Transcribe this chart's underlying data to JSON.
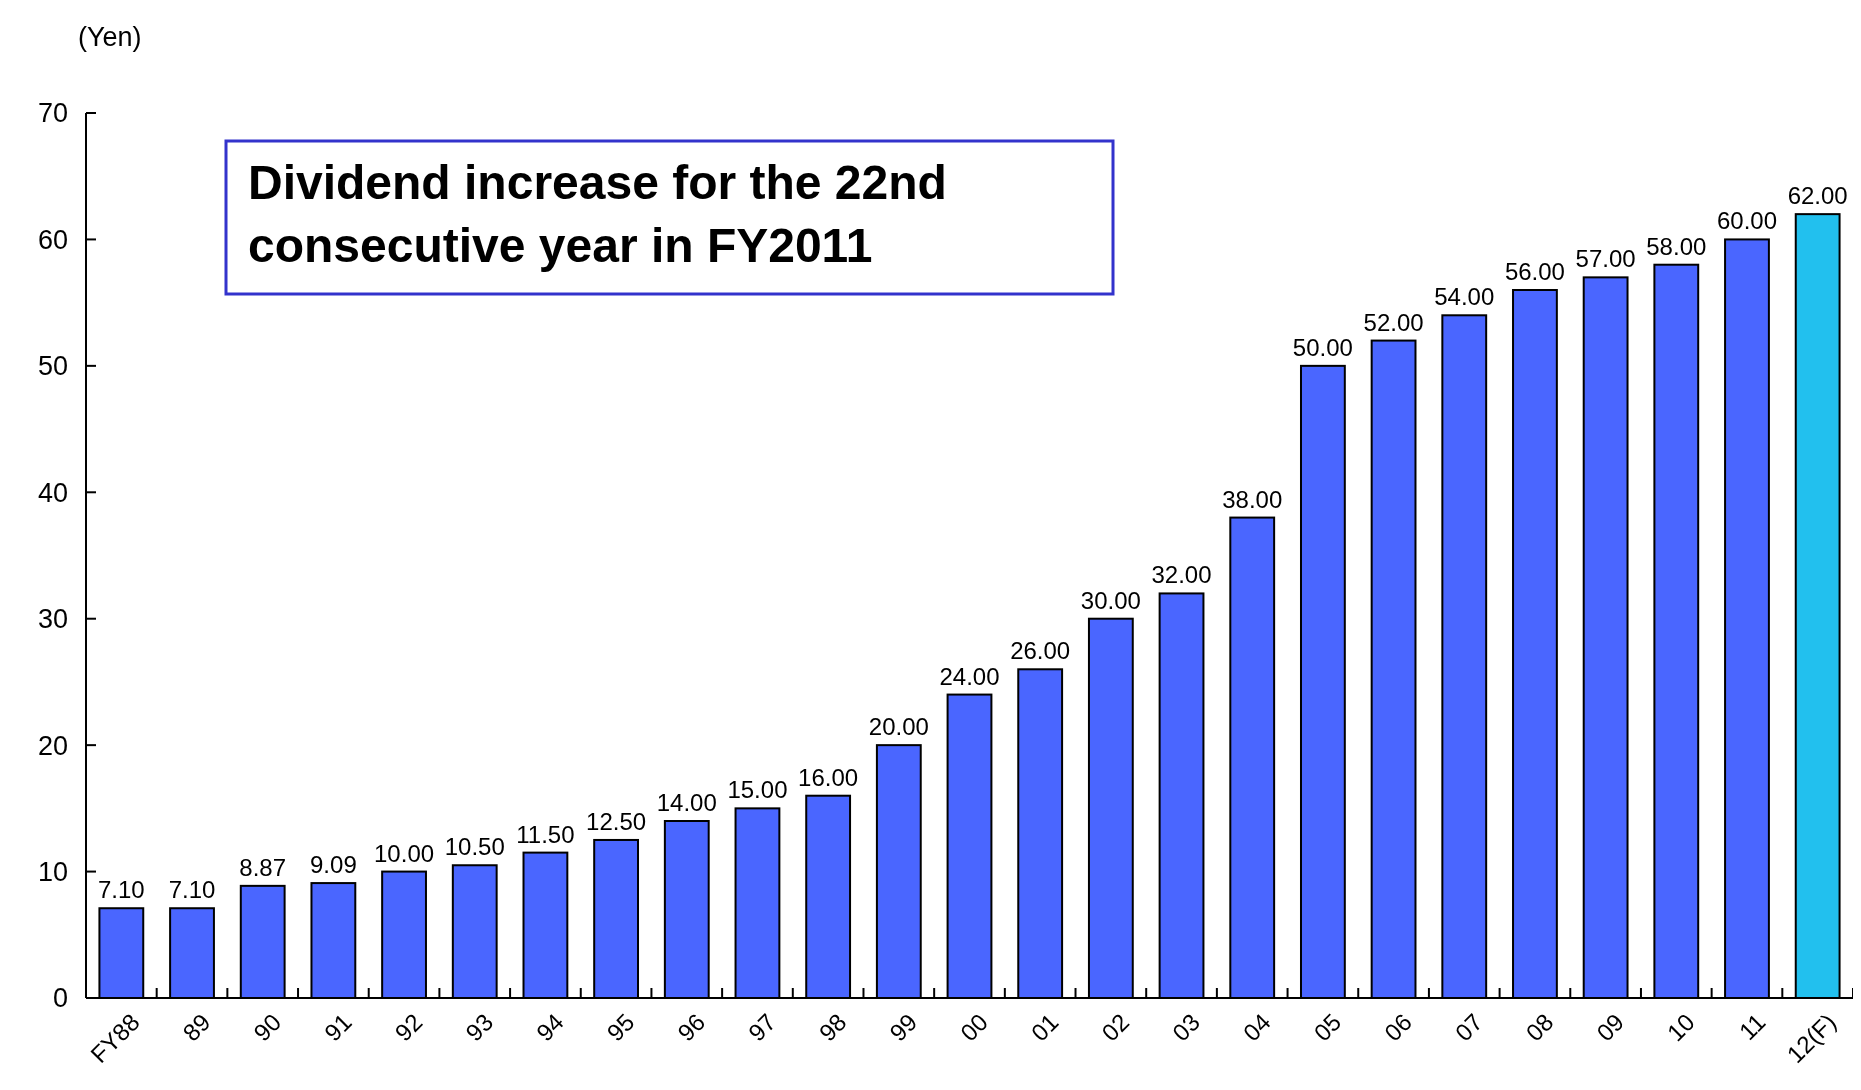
{
  "chart_data": {
    "type": "bar",
    "title": "Dividend increase for the 22nd consecutive year in FY2011",
    "ylabel": "(Yen)",
    "categories": [
      "FY88",
      "89",
      "90",
      "91",
      "92",
      "93",
      "94",
      "95",
      "96",
      "97",
      "98",
      "99",
      "00",
      "01",
      "02",
      "03",
      "04",
      "05",
      "06",
      "07",
      "08",
      "09",
      "10",
      "11",
      "12(F)"
    ],
    "values": [
      7.1,
      7.1,
      8.87,
      9.09,
      10,
      10.5,
      11.5,
      12.5,
      14,
      15,
      16,
      20,
      24,
      26,
      30,
      32,
      38,
      50,
      52,
      54,
      56,
      57,
      58,
      60,
      62
    ],
    "value_labels": [
      "7.10",
      "7.10",
      "8.87",
      "9.09",
      "10.00",
      "10.50",
      "11.50",
      "12.50",
      "14.00",
      "15.00",
      "16.00",
      "20.00",
      "24.00",
      "26.00",
      "30.00",
      "32.00",
      "38.00",
      "50.00",
      "52.00",
      "54.00",
      "56.00",
      "57.00",
      "58.00",
      "60.00",
      "62.00"
    ],
    "colors": [
      "#4a66ff",
      "#4a66ff",
      "#4a66ff",
      "#4a66ff",
      "#4a66ff",
      "#4a66ff",
      "#4a66ff",
      "#4a66ff",
      "#4a66ff",
      "#4a66ff",
      "#4a66ff",
      "#4a66ff",
      "#4a66ff",
      "#4a66ff",
      "#4a66ff",
      "#4a66ff",
      "#4a66ff",
      "#4a66ff",
      "#4a66ff",
      "#4a66ff",
      "#4a66ff",
      "#4a66ff",
      "#4a66ff",
      "#4a66ff",
      "#22c0ee"
    ],
    "ylim": [
      0,
      70
    ],
    "yticks": [
      0,
      10,
      20,
      30,
      40,
      50,
      60,
      70
    ],
    "grid": false
  }
}
